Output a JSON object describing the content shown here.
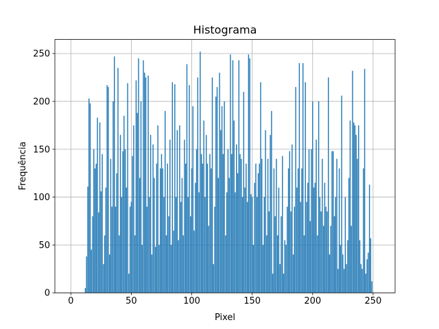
{
  "chart_data": {
    "type": "bar",
    "title": "Histograma",
    "xlabel": "Pixel",
    "ylabel": "Frequência",
    "color": "#1f77b4",
    "grid": true,
    "xlim": [
      -13.2,
      268.2
    ],
    "ylim": [
      0,
      264.7
    ],
    "xticks": [
      0,
      50,
      100,
      150,
      200,
      250
    ],
    "yticks": [
      0,
      50,
      100,
      150,
      200,
      250
    ],
    "x": [
      0,
      1,
      2,
      3,
      4,
      5,
      6,
      7,
      8,
      9,
      10,
      11,
      12,
      13,
      14,
      15,
      16,
      17,
      18,
      19,
      20,
      21,
      22,
      23,
      24,
      25,
      26,
      27,
      28,
      29,
      30,
      31,
      32,
      33,
      34,
      35,
      36,
      37,
      38,
      39,
      40,
      41,
      42,
      43,
      44,
      45,
      46,
      47,
      48,
      49,
      50,
      51,
      52,
      53,
      54,
      55,
      56,
      57,
      58,
      59,
      60,
      61,
      62,
      63,
      64,
      65,
      66,
      67,
      68,
      69,
      70,
      71,
      72,
      73,
      74,
      75,
      76,
      77,
      78,
      79,
      80,
      81,
      82,
      83,
      84,
      85,
      86,
      87,
      88,
      89,
      90,
      91,
      92,
      93,
      94,
      95,
      96,
      97,
      98,
      99,
      100,
      101,
      102,
      103,
      104,
      105,
      106,
      107,
      108,
      109,
      110,
      111,
      112,
      113,
      114,
      115,
      116,
      117,
      118,
      119,
      120,
      121,
      122,
      123,
      124,
      125,
      126,
      127,
      128,
      129,
      130,
      131,
      132,
      133,
      134,
      135,
      136,
      137,
      138,
      139,
      140,
      141,
      142,
      143,
      144,
      145,
      146,
      147,
      148,
      149,
      150,
      151,
      152,
      153,
      154,
      155,
      156,
      157,
      158,
      159,
      160,
      161,
      162,
      163,
      164,
      165,
      166,
      167,
      168,
      169,
      170,
      171,
      172,
      173,
      174,
      175,
      176,
      177,
      178,
      179,
      180,
      181,
      182,
      183,
      184,
      185,
      186,
      187,
      188,
      189,
      190,
      191,
      192,
      193,
      194,
      195,
      196,
      197,
      198,
      199,
      200,
      201,
      202,
      203,
      204,
      205,
      206,
      207,
      208,
      209,
      210,
      211,
      212,
      213,
      214,
      215,
      216,
      217,
      218,
      219,
      220,
      221,
      222,
      223,
      224,
      225,
      226,
      227,
      228,
      229,
      230,
      231,
      232,
      233,
      234,
      235,
      236,
      237,
      238,
      239,
      240,
      241,
      242,
      243,
      244,
      245,
      246,
      247,
      248,
      249,
      250,
      251,
      252,
      253,
      254,
      255
    ],
    "values": [
      0,
      0,
      0,
      0,
      0,
      0,
      0,
      0,
      0,
      0,
      0,
      0,
      5,
      38,
      111,
      203,
      198,
      45,
      80,
      150,
      130,
      135,
      183,
      84,
      178,
      106,
      145,
      30,
      60,
      110,
      217,
      215,
      40,
      140,
      90,
      200,
      247,
      90,
      125,
      235,
      60,
      165,
      100,
      148,
      185,
      150,
      110,
      219,
      20,
      90,
      95,
      143,
      175,
      60,
      222,
      188,
      245,
      120,
      200,
      50,
      243,
      230,
      225,
      90,
      227,
      100,
      165,
      40,
      155,
      120,
      48,
      135,
      175,
      50,
      130,
      145,
      130,
      100,
      190,
      60,
      135,
      80,
      160,
      50,
      220,
      65,
      218,
      100,
      170,
      55,
      175,
      95,
      120,
      60,
      160,
      135,
      239,
      100,
      217,
      80,
      130,
      195,
      65,
      115,
      150,
      225,
      105,
      252,
      145,
      135,
      180,
      100,
      165,
      135,
      70,
      145,
      130,
      225,
      30,
      90,
      205,
      215,
      120,
      230,
      170,
      195,
      145,
      200,
      60,
      105,
      150,
      120,
      249,
      145,
      243,
      180,
      105,
      155,
      125,
      243,
      145,
      140,
      100,
      210,
      110,
      135,
      95,
      249,
      245,
      103,
      100,
      50,
      115,
      135,
      100,
      125,
      135,
      220,
      140,
      50,
      100,
      170,
      60,
      140,
      85,
      165,
      190,
      20,
      130,
      80,
      140,
      60,
      110,
      30,
      80,
      143,
      20,
      55,
      50,
      90,
      130,
      148,
      85,
      155,
      40,
      90,
      215,
      110,
      130,
      240,
      95,
      130,
      240,
      60,
      220,
      95,
      115,
      150,
      75,
      150,
      200,
      110,
      115,
      160,
      60,
      200,
      100,
      85,
      140,
      70,
      115,
      90,
      85,
      225,
      40,
      70,
      148,
      148,
      80,
      100,
      140,
      25,
      130,
      50,
      206,
      40,
      25,
      100,
      30,
      55,
      120,
      180,
      70,
      232,
      178,
      175,
      165,
      140,
      175,
      55,
      30,
      25,
      130,
      234,
      20,
      35,
      42,
      113,
      57,
      12,
      0,
      0,
      0,
      0,
      0,
      0
    ]
  }
}
